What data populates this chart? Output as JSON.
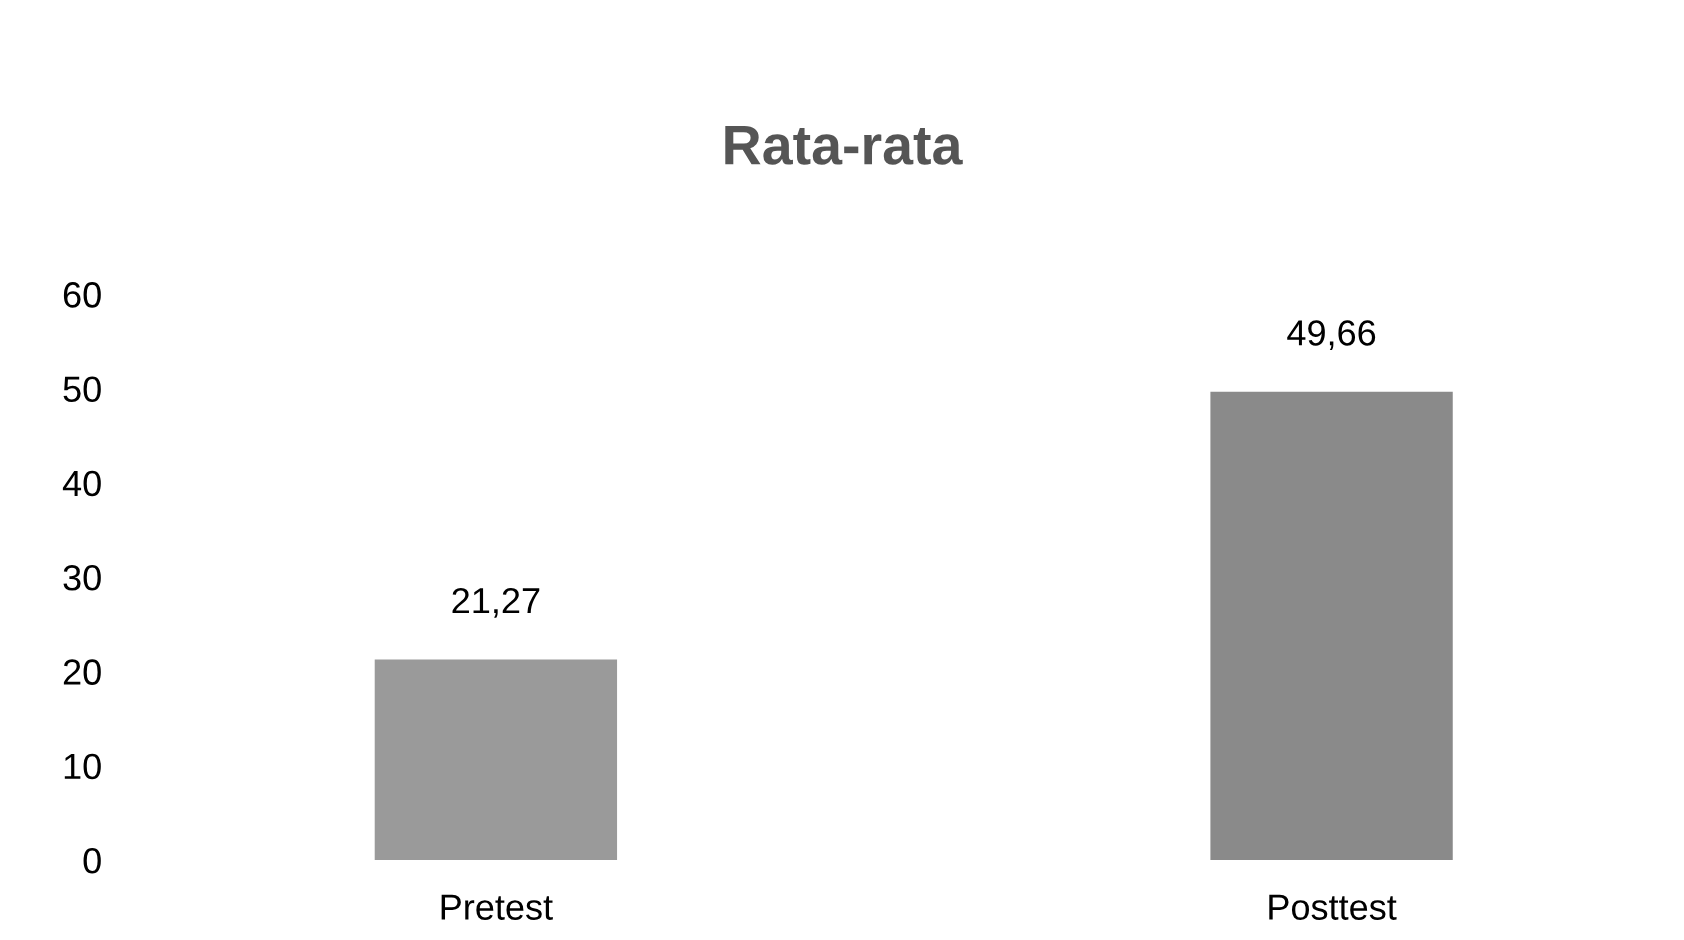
{
  "chart_data": {
    "type": "bar",
    "title": "Rata-rata",
    "categories": [
      "Pretest",
      "Posttest"
    ],
    "values": [
      21.27,
      49.66
    ],
    "value_labels": [
      "21,27",
      "49,66"
    ],
    "colors": [
      "#9a9a9a",
      "#8a8a8a"
    ],
    "ylim": [
      0,
      60
    ],
    "yticks": [
      0,
      10,
      20,
      30,
      40,
      50,
      60
    ],
    "grid": false,
    "legend": false
  }
}
